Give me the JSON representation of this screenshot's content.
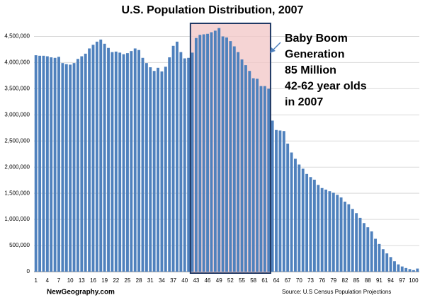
{
  "chart_data": {
    "type": "bar",
    "title": "U.S. Population Distribution, 2007",
    "categories": [
      "1",
      null,
      null,
      "4",
      null,
      null,
      "7",
      null,
      null,
      "10",
      null,
      null,
      "13",
      null,
      null,
      "16",
      null,
      null,
      "19",
      null,
      null,
      "22",
      null,
      null,
      "25",
      null,
      null,
      "28",
      null,
      null,
      "31",
      null,
      null,
      "34",
      null,
      null,
      "37",
      null,
      null,
      "40",
      null,
      null,
      "43",
      null,
      null,
      "46",
      null,
      null,
      "49",
      null,
      null,
      "52",
      null,
      null,
      "55",
      null,
      null,
      "58",
      null,
      null,
      "61",
      null,
      null,
      "64",
      null,
      null,
      "67",
      null,
      null,
      "70",
      null,
      null,
      "73",
      null,
      null,
      "76",
      null,
      null,
      "79",
      null,
      null,
      "82",
      null,
      null,
      "85",
      null,
      null,
      "88",
      null,
      null,
      "91",
      null,
      null,
      "94",
      null,
      null,
      "97",
      null,
      null,
      "100",
      null
    ],
    "values": [
      4140000,
      4130000,
      4130000,
      4120000,
      4100000,
      4090000,
      4110000,
      3990000,
      3970000,
      3960000,
      3990000,
      4070000,
      4120000,
      4170000,
      4270000,
      4340000,
      4400000,
      4440000,
      4360000,
      4280000,
      4200000,
      4210000,
      4190000,
      4160000,
      4180000,
      4220000,
      4270000,
      4240000,
      4090000,
      3990000,
      3910000,
      3840000,
      3900000,
      3830000,
      3920000,
      4100000,
      4320000,
      4400000,
      4200000,
      4080000,
      4090000,
      4190000,
      4470000,
      4530000,
      4540000,
      4550000,
      4580000,
      4610000,
      4660000,
      4500000,
      4480000,
      4410000,
      4310000,
      4200000,
      4060000,
      3950000,
      3840000,
      3700000,
      3690000,
      3550000,
      3550000,
      3500000,
      2890000,
      2710000,
      2700000,
      2690000,
      2450000,
      2280000,
      2160000,
      2050000,
      1970000,
      1870000,
      1810000,
      1760000,
      1660000,
      1600000,
      1570000,
      1540000,
      1510000,
      1470000,
      1420000,
      1340000,
      1290000,
      1200000,
      1120000,
      1030000,
      930000,
      850000,
      770000,
      630000,
      530000,
      430000,
      350000,
      280000,
      200000,
      140000,
      100000,
      70000,
      50000,
      30000,
      60000
    ],
    "color": "#4f81bd",
    "ylim": [
      0,
      4750000
    ],
    "yticks": [
      0,
      {
        "value": 500000,
        "label": "500,000"
      },
      {
        "value": 1000000,
        "label": "1,000,000"
      },
      {
        "value": 1500000,
        "label": "1,500,000"
      },
      {
        "value": 2000000,
        "label": "2,000,000"
      },
      {
        "value": 2500000,
        "label": "2,500,000"
      },
      {
        "value": 3000000,
        "label": "3,000,000"
      },
      {
        "value": 3500000,
        "label": "3,500,000"
      },
      {
        "value": 4000000,
        "label": "4,000,000"
      },
      {
        "value": 4500000,
        "label": "4,500,000"
      }
    ],
    "grid": true,
    "annotation": [
      "Baby Boom",
      "Generation",
      "85 Million",
      "42-62 year olds",
      "in 2007"
    ],
    "credit": "NewGeography.com",
    "source": "Source: U.S Census Population Projections"
  }
}
